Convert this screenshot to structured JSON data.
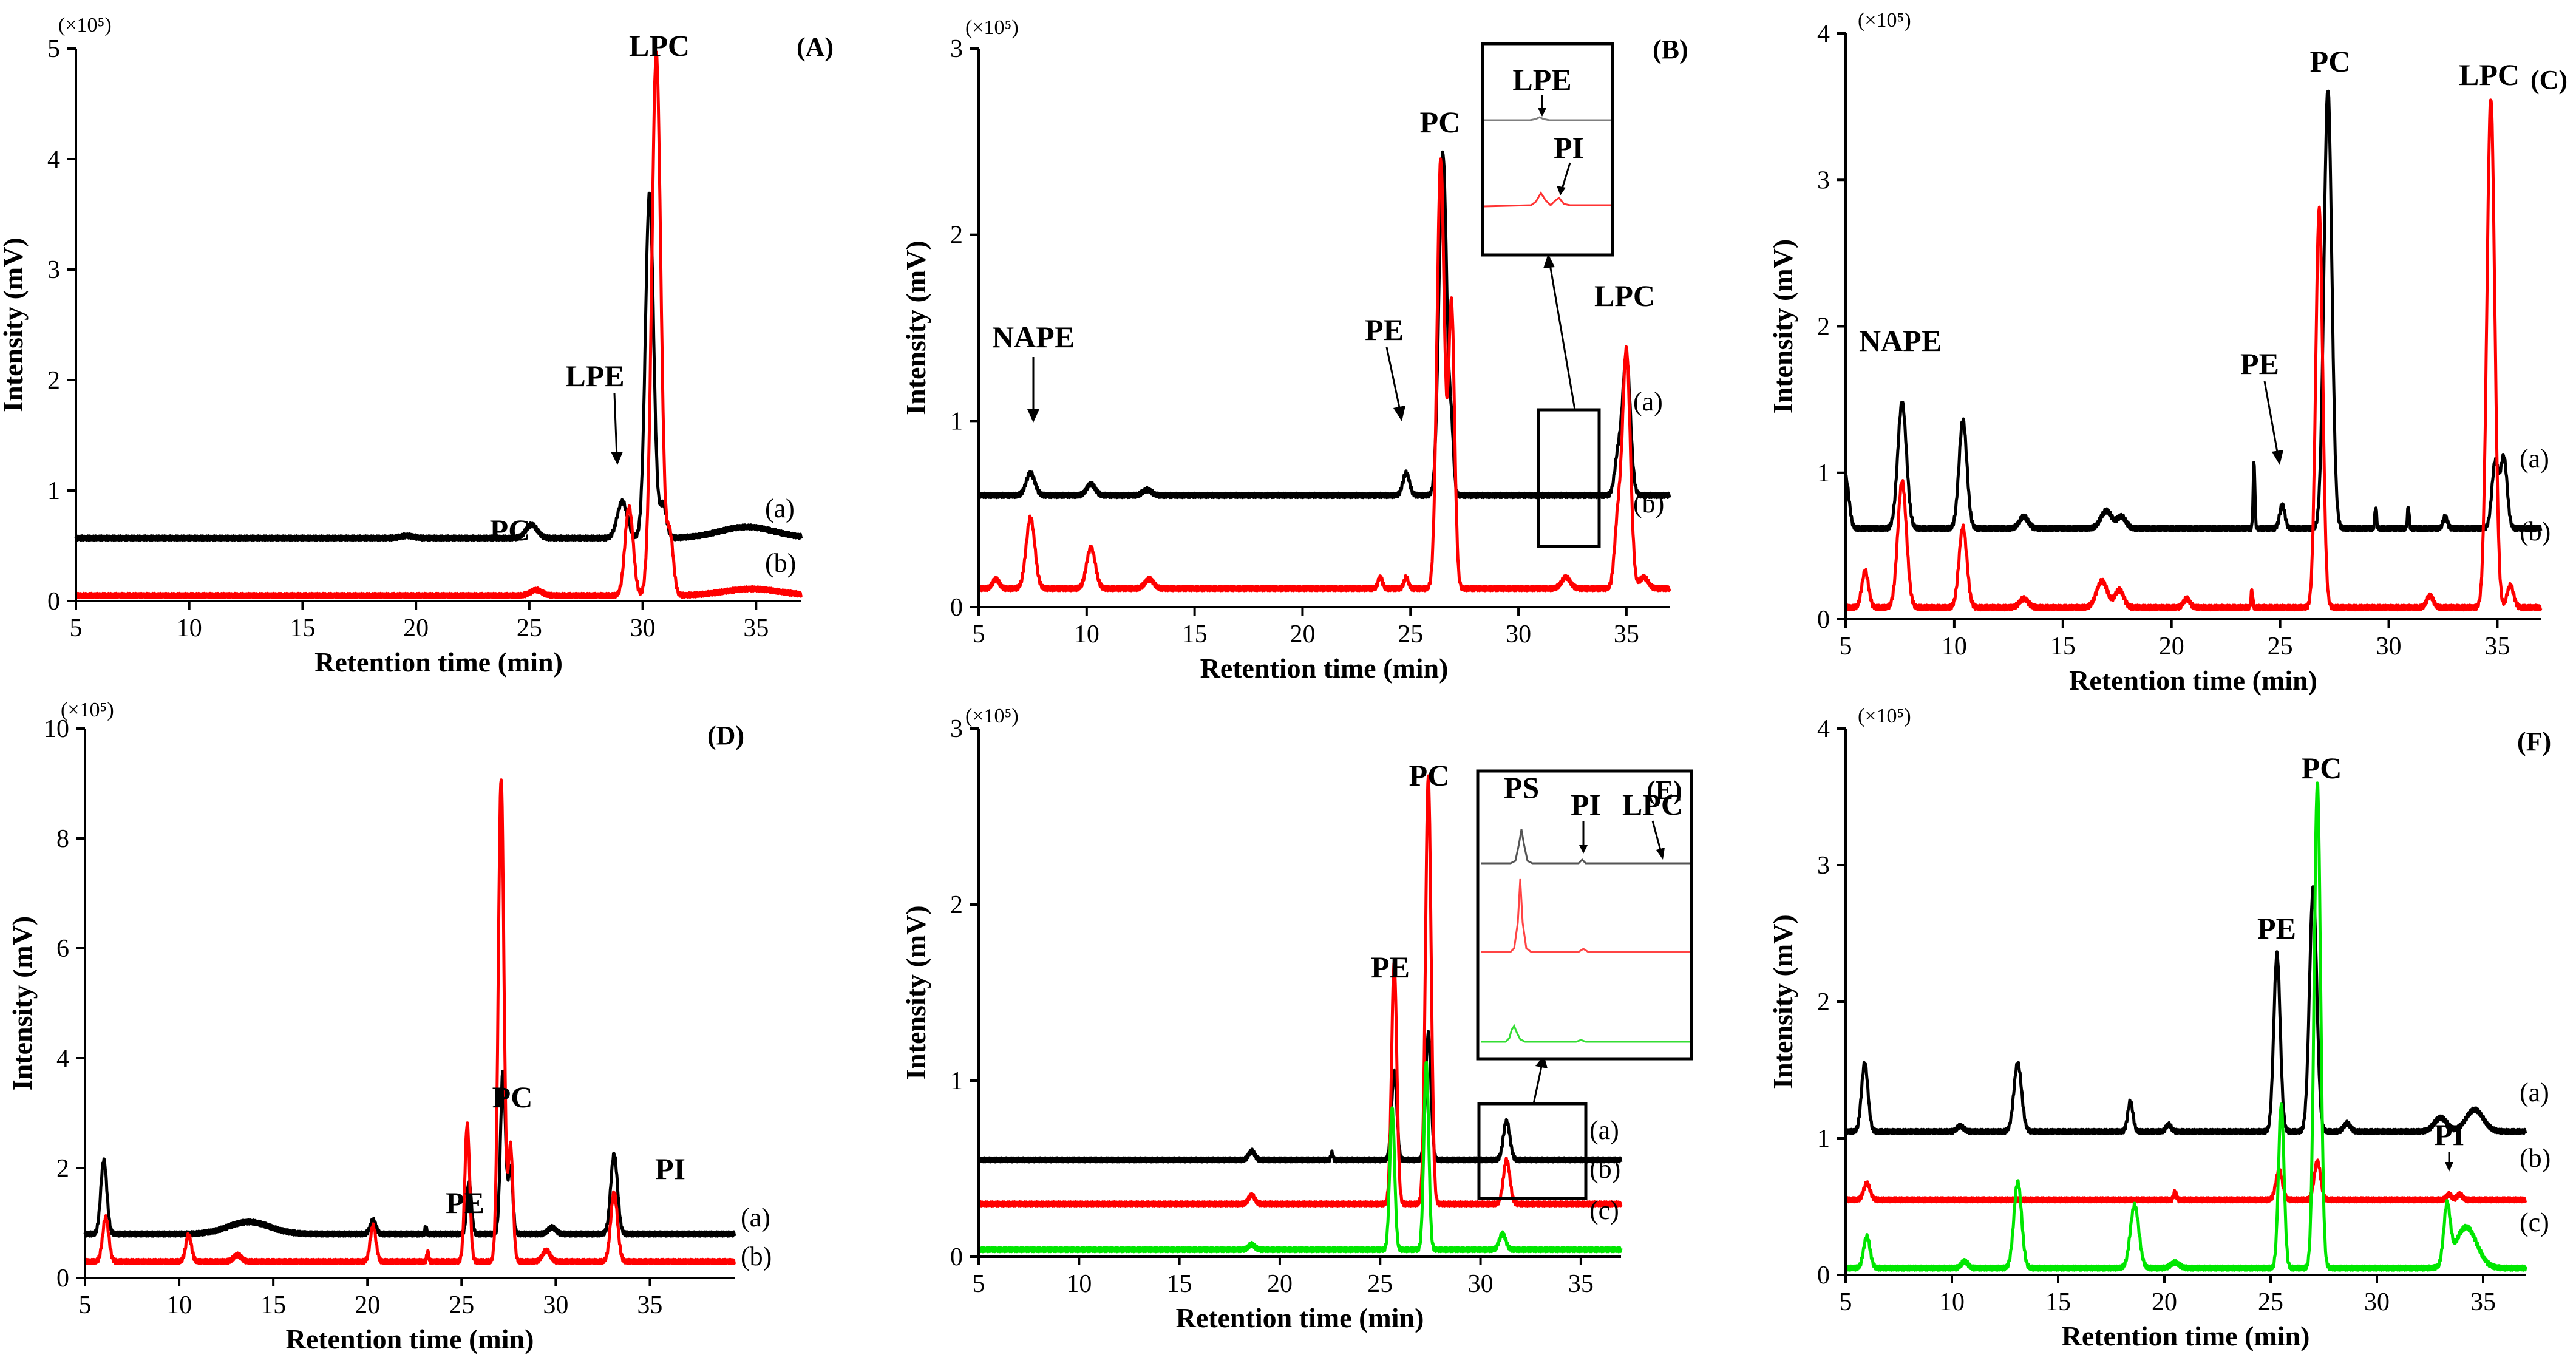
{
  "colors": {
    "trace_a": "#000000",
    "trace_b": "#ff0000",
    "trace_c": "#00e600"
  },
  "chart_data": [
    {
      "panel": "(A)",
      "type": "line",
      "xlabel": "Retention time (min)",
      "ylabel": "Intensity (mV)",
      "scale": "(×10⁵)",
      "xlim": [
        5,
        37
      ],
      "ylim": [
        0,
        5
      ],
      "xticks": [
        5,
        10,
        15,
        20,
        25,
        30,
        35
      ],
      "yticks": [
        0,
        1,
        2,
        3,
        4,
        5
      ],
      "series": [
        {
          "name": "(a)",
          "color": "#000000",
          "baseline": 0.57,
          "peaks": [
            [
              19.6,
              0.02,
              0.3
            ],
            [
              25.1,
              0.12,
              0.25
            ],
            [
              29.1,
              0.33,
              0.22
            ],
            [
              30.3,
              3.12,
              0.18
            ],
            [
              30.9,
              0.3,
              0.15
            ],
            [
              34.6,
              0.1,
              1.2
            ]
          ]
        },
        {
          "name": "(b)",
          "color": "#ff0000",
          "baseline": 0.05,
          "peaks": [
            [
              25.3,
              0.05,
              0.25
            ],
            [
              29.4,
              0.8,
              0.18
            ],
            [
              30.6,
              4.9,
              0.2
            ],
            [
              31.2,
              0.55,
              0.15
            ],
            [
              34.8,
              0.06,
              1.2
            ]
          ]
        }
      ],
      "annotations": [
        "PC",
        "LPE",
        "LPC"
      ]
    },
    {
      "panel": "(B)",
      "type": "line",
      "xlabel": "Retention time (min)",
      "ylabel": "Intensity (mV)",
      "scale": "(×10⁵)",
      "xlim": [
        5,
        37
      ],
      "ylim": [
        0,
        3
      ],
      "xticks": [
        5,
        10,
        15,
        20,
        25,
        30,
        35
      ],
      "yticks": [
        0,
        1,
        2,
        3
      ],
      "series": [
        {
          "name": "(a)",
          "color": "#000000",
          "baseline": 0.6,
          "peaks": [
            [
              7.4,
              0.12,
              0.2
            ],
            [
              10.2,
              0.06,
              0.2
            ],
            [
              12.8,
              0.03,
              0.2
            ],
            [
              24.8,
              0.12,
              0.15
            ],
            [
              26.5,
              1.84,
              0.18
            ],
            [
              26.9,
              0.3,
              0.1
            ],
            [
              34.6,
              0.2,
              0.15
            ],
            [
              35.0,
              0.75,
              0.18
            ]
          ]
        },
        {
          "name": "(b)",
          "color": "#ff0000",
          "baseline": 0.1,
          "peaks": [
            [
              5.8,
              0.05,
              0.15
            ],
            [
              7.4,
              0.38,
              0.2
            ],
            [
              10.2,
              0.22,
              0.2
            ],
            [
              12.9,
              0.05,
              0.2
            ],
            [
              23.6,
              0.06,
              0.1
            ],
            [
              24.8,
              0.06,
              0.1
            ],
            [
              26.4,
              2.3,
              0.17
            ],
            [
              26.9,
              1.52,
              0.14
            ],
            [
              32.2,
              0.06,
              0.2
            ],
            [
              34.6,
              0.35,
              0.15
            ],
            [
              35.0,
              1.28,
              0.18
            ],
            [
              35.8,
              0.06,
              0.2
            ]
          ]
        }
      ],
      "annotations": [
        "NAPE",
        "PE",
        "PC",
        "LPC"
      ],
      "inset": {
        "labels": [
          "LPE",
          "PI"
        ]
      }
    },
    {
      "panel": "(C)",
      "type": "line",
      "xlabel": "Retention time (min)",
      "ylabel": "Intensity (mV)",
      "scale": "(×10⁵)",
      "xlim": [
        5,
        37
      ],
      "ylim": [
        0,
        4
      ],
      "xticks": [
        5,
        10,
        15,
        20,
        25,
        30,
        35
      ],
      "yticks": [
        0,
        1,
        2,
        3,
        4
      ],
      "series": [
        {
          "name": "(a)",
          "color": "#000000",
          "baseline": 0.62,
          "peaks": [
            [
              5.0,
              0.35,
              0.15
            ],
            [
              7.6,
              0.86,
              0.2
            ],
            [
              10.4,
              0.74,
              0.18
            ],
            [
              13.2,
              0.08,
              0.2
            ],
            [
              17.0,
              0.12,
              0.25
            ],
            [
              17.7,
              0.08,
              0.2
            ],
            [
              23.8,
              0.46,
              0.04
            ],
            [
              25.1,
              0.16,
              0.12
            ],
            [
              27.2,
              3.0,
              0.18
            ],
            [
              29.4,
              0.15,
              0.04
            ],
            [
              30.9,
              0.15,
              0.04
            ],
            [
              32.6,
              0.08,
              0.1
            ],
            [
              34.9,
              0.45,
              0.15
            ],
            [
              35.3,
              0.48,
              0.15
            ]
          ]
        },
        {
          "name": "(b)",
          "color": "#ff0000",
          "baseline": 0.08,
          "peaks": [
            [
              5.9,
              0.25,
              0.15
            ],
            [
              7.6,
              0.86,
              0.2
            ],
            [
              10.4,
              0.55,
              0.18
            ],
            [
              13.2,
              0.06,
              0.2
            ],
            [
              16.8,
              0.18,
              0.25
            ],
            [
              17.6,
              0.12,
              0.2
            ],
            [
              20.7,
              0.06,
              0.15
            ],
            [
              23.7,
              0.12,
              0.04
            ],
            [
              26.8,
              2.72,
              0.16
            ],
            [
              31.9,
              0.08,
              0.15
            ],
            [
              34.7,
              3.48,
              0.18
            ],
            [
              35.6,
              0.15,
              0.15
            ]
          ]
        }
      ],
      "annotations": [
        "NAPE",
        "PE",
        "PC",
        "LPC"
      ]
    },
    {
      "panel": "(D)",
      "type": "line",
      "xlabel": "Retention time (min)",
      "ylabel": "Intensity (mV)",
      "scale": "(×10⁵)",
      "xlim": [
        5,
        39.5
      ],
      "ylim": [
        0,
        10
      ],
      "xticks": [
        5,
        10,
        15,
        20,
        25,
        30,
        35
      ],
      "yticks": [
        0,
        2,
        4,
        6,
        8,
        10
      ],
      "series": [
        {
          "name": "(a)",
          "color": "#000000",
          "baseline": 0.8,
          "peaks": [
            [
              6.0,
              1.35,
              0.16
            ],
            [
              13.7,
              0.22,
              1.1
            ],
            [
              20.3,
              0.25,
              0.15
            ],
            [
              23.1,
              0.15,
              0.04
            ],
            [
              25.4,
              0.95,
              0.12
            ],
            [
              27.2,
              3.0,
              0.13
            ],
            [
              27.6,
              1.2,
              0.12
            ],
            [
              29.8,
              0.12,
              0.2
            ],
            [
              33.1,
              1.45,
              0.18
            ]
          ]
        },
        {
          "name": "(b)",
          "color": "#ff0000",
          "baseline": 0.3,
          "peaks": [
            [
              6.1,
              0.8,
              0.16
            ],
            [
              10.5,
              0.48,
              0.15
            ],
            [
              13.1,
              0.12,
              0.2
            ],
            [
              20.3,
              0.65,
              0.15
            ],
            [
              23.2,
              0.18,
              0.05
            ],
            [
              25.3,
              2.5,
              0.13
            ],
            [
              27.1,
              8.8,
              0.15
            ],
            [
              27.6,
              2.1,
              0.13
            ],
            [
              29.5,
              0.2,
              0.2
            ],
            [
              33.1,
              1.25,
              0.18
            ]
          ]
        }
      ],
      "annotations": [
        "PE",
        "PC",
        "PI"
      ]
    },
    {
      "panel": "(E)",
      "type": "line",
      "xlabel": "Retention time (min)",
      "ylabel": "Intensity (mV)",
      "scale": "(×10⁵)",
      "xlim": [
        5,
        37
      ],
      "ylim": [
        0,
        3
      ],
      "xticks": [
        5,
        10,
        15,
        20,
        25,
        30,
        35
      ],
      "yticks": [
        0,
        1,
        2,
        3
      ],
      "series": [
        {
          "name": "(a)",
          "color": "#000000",
          "baseline": 0.55,
          "peaks": [
            [
              18.6,
              0.05,
              0.15
            ],
            [
              22.6,
              0.04,
              0.05
            ],
            [
              25.7,
              0.5,
              0.13
            ],
            [
              27.4,
              0.72,
              0.13
            ],
            [
              31.3,
              0.22,
              0.16
            ]
          ]
        },
        {
          "name": "(b)",
          "color": "#ff0000",
          "baseline": 0.3,
          "peaks": [
            [
              18.6,
              0.05,
              0.15
            ],
            [
              25.7,
              1.37,
              0.13
            ],
            [
              27.4,
              2.42,
              0.14
            ],
            [
              31.3,
              0.25,
              0.16
            ]
          ]
        },
        {
          "name": "(c)",
          "color": "#00e600",
          "baseline": 0.04,
          "peaks": [
            [
              18.6,
              0.03,
              0.15
            ],
            [
              25.6,
              0.8,
              0.12
            ],
            [
              27.3,
              1.06,
              0.12
            ],
            [
              31.1,
              0.09,
              0.16
            ]
          ]
        }
      ],
      "annotations": [
        "PE",
        "PC"
      ],
      "inset": {
        "labels": [
          "PS",
          "PI",
          "LPC"
        ]
      }
    },
    {
      "panel": "(F)",
      "type": "line",
      "xlabel": "Retention time (min)",
      "ylabel": "Intensity (mV)",
      "scale": "(×10⁵)",
      "xlim": [
        5,
        37
      ],
      "ylim": [
        0,
        4
      ],
      "xticks": [
        5,
        10,
        15,
        20,
        25,
        30,
        35
      ],
      "yticks": [
        0,
        1,
        2,
        3,
        4
      ],
      "series": [
        {
          "name": "(a)",
          "color": "#000000",
          "baseline": 1.05,
          "peaks": [
            [
              5.9,
              0.5,
              0.15
            ],
            [
              10.4,
              0.04,
              0.15
            ],
            [
              13.1,
              0.5,
              0.18
            ],
            [
              18.4,
              0.22,
              0.12
            ],
            [
              20.2,
              0.05,
              0.12
            ],
            [
              25.3,
              1.3,
              0.15
            ],
            [
              27.0,
              1.78,
              0.17
            ],
            [
              28.6,
              0.06,
              0.15
            ],
            [
              33.0,
              0.1,
              0.3
            ],
            [
              34.6,
              0.16,
              0.4
            ]
          ]
        },
        {
          "name": "(b)",
          "color": "#ff0000",
          "baseline": 0.55,
          "peaks": [
            [
              6.0,
              0.12,
              0.15
            ],
            [
              20.5,
              0.06,
              0.06
            ],
            [
              25.4,
              0.22,
              0.15
            ],
            [
              27.2,
              0.28,
              0.15
            ],
            [
              33.4,
              0.04,
              0.12
            ],
            [
              33.9,
              0.04,
              0.12
            ]
          ]
        },
        {
          "name": "(c)",
          "color": "#00e600",
          "baseline": 0.05,
          "peaks": [
            [
              6.0,
              0.23,
              0.15
            ],
            [
              10.6,
              0.05,
              0.15
            ],
            [
              13.1,
              0.63,
              0.18
            ],
            [
              18.6,
              0.46,
              0.2
            ],
            [
              20.5,
              0.04,
              0.2
            ],
            [
              25.5,
              1.2,
              0.13
            ],
            [
              27.2,
              3.55,
              0.15
            ],
            [
              33.3,
              0.42,
              0.15
            ],
            [
              34.2,
              0.3,
              0.5
            ]
          ]
        }
      ],
      "annotations": [
        "PE",
        "PC",
        "PI"
      ]
    }
  ]
}
